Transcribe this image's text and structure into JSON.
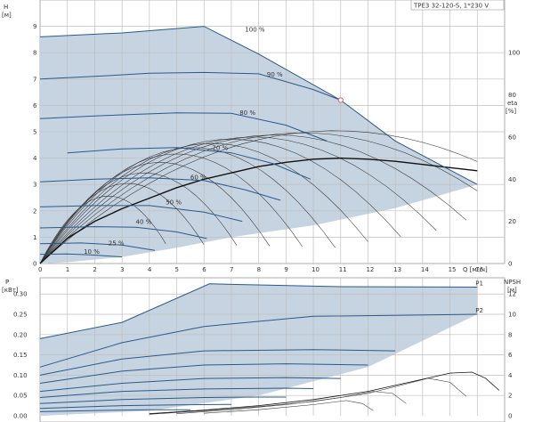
{
  "title": "TPE3 32-120-S, 1*230 V",
  "colors": {
    "band": "#c6d3e1",
    "curve": "#2b5a8a",
    "marker": "#e06060",
    "grid": "#bfbfbf"
  },
  "chart_data": [
    {
      "type": "line",
      "name": "head-efficiency",
      "xlim": [
        0,
        17
      ],
      "ylim": [
        0,
        10
      ],
      "x_ticks": [
        "0",
        "1",
        "2",
        "3",
        "4",
        "5",
        "6",
        "7",
        "8",
        "9",
        "10",
        "11",
        "12",
        "13",
        "14",
        "15",
        "16"
      ],
      "y_ticks": [
        "0",
        "1",
        "2",
        "3",
        "4",
        "5",
        "6",
        "7",
        "8",
        "9"
      ],
      "x_unit_label": "Q [м³/ч]",
      "y_title": "H",
      "y_unit": "[м]",
      "right_title": "eta",
      "right_unit": "[%]",
      "right_ticks": [
        "0",
        "20",
        "40",
        "60",
        "80",
        "100"
      ],
      "right_range": [
        0,
        125
      ],
      "curve_labels": [
        "100 %",
        "90 %",
        "80 %",
        "70 %",
        "60 %",
        "50 %",
        "40 %",
        "25 %",
        "10 %"
      ],
      "speed_curves": [
        {
          "label": "100 %",
          "points": [
            [
              0,
              8.6
            ],
            [
              3,
              8.75
            ],
            [
              6,
              9.0
            ],
            [
              8,
              7.95
            ],
            [
              11,
              6.2
            ],
            [
              13,
              4.65
            ],
            [
              15,
              3.55
            ],
            [
              16,
              3.0
            ]
          ]
        },
        {
          "label": "90 %",
          "points": [
            [
              0,
              7.0
            ],
            [
              2,
              7.1
            ],
            [
              4,
              7.22
            ],
            [
              6,
              7.25
            ],
            [
              8,
              7.2
            ],
            [
              10,
              6.6
            ],
            [
              11,
              6.2
            ]
          ]
        },
        {
          "label": "80 %",
          "points": [
            [
              0,
              5.5
            ],
            [
              2,
              5.6
            ],
            [
              5,
              5.72
            ],
            [
              7,
              5.7
            ],
            [
              9,
              5.25
            ],
            [
              10.5,
              4.65
            ]
          ]
        },
        {
          "label": "70 %",
          "points": [
            [
              1,
              4.2
            ],
            [
              3,
              4.35
            ],
            [
              5,
              4.4
            ],
            [
              7,
              4.2
            ],
            [
              8.5,
              3.8
            ],
            [
              9.9,
              3.2
            ]
          ]
        },
        {
          "label": "60 %",
          "points": [
            [
              0,
              3.1
            ],
            [
              2,
              3.2
            ],
            [
              4,
              3.25
            ],
            [
              6,
              3.15
            ],
            [
              7.5,
              2.8
            ],
            [
              8.8,
              2.4
            ]
          ]
        },
        {
          "label": "50 %",
          "points": [
            [
              0,
              2.15
            ],
            [
              2,
              2.2
            ],
            [
              4,
              2.2
            ],
            [
              6,
              1.95
            ],
            [
              7.4,
              1.6
            ]
          ]
        },
        {
          "label": "40 %",
          "points": [
            [
              0,
              1.35
            ],
            [
              2,
              1.4
            ],
            [
              3.5,
              1.38
            ],
            [
              5,
              1.2
            ],
            [
              6.1,
              0.95
            ]
          ]
        },
        {
          "label": "25 %",
          "points": [
            [
              0,
              0.75
            ],
            [
              1.5,
              0.78
            ],
            [
              3,
              0.7
            ],
            [
              4.2,
              0.5
            ]
          ]
        },
        {
          "label": "10 %",
          "points": [
            [
              0,
              0.35
            ],
            [
              1,
              0.36
            ],
            [
              2,
              0.32
            ],
            [
              3,
              0.25
            ]
          ]
        }
      ],
      "efficiency_curves": [
        {
          "peak_q": 2.5,
          "end_q": 4.6,
          "peak_eta": 32
        },
        {
          "peak_q": 3.2,
          "end_q": 6.0,
          "peak_eta": 38
        },
        {
          "peak_q": 3.8,
          "end_q": 7.2,
          "peak_eta": 43
        },
        {
          "peak_q": 4.4,
          "end_q": 8.4,
          "peak_eta": 48
        },
        {
          "peak_q": 5.0,
          "end_q": 9.6,
          "peak_eta": 52
        },
        {
          "peak_q": 5.6,
          "end_q": 10.8,
          "peak_eta": 55
        },
        {
          "peak_q": 6.3,
          "end_q": 12.0,
          "peak_eta": 57
        },
        {
          "peak_q": 7.0,
          "end_q": 13.2,
          "peak_eta": 59
        },
        {
          "peak_q": 7.8,
          "end_q": 14.5,
          "peak_eta": 60
        },
        {
          "peak_q": 8.6,
          "end_q": 15.6,
          "peak_eta": 61
        },
        {
          "peak_q": 9.6,
          "end_q": 16.0,
          "peak_eta": 62
        },
        {
          "peak_q": 10.8,
          "end_q": 16.0,
          "peak_eta": 63
        }
      ],
      "bold_eta_curve": [
        [
          0,
          0
        ],
        [
          1,
          12
        ],
        [
          2,
          20
        ],
        [
          3,
          26
        ],
        [
          4,
          31
        ],
        [
          5,
          36
        ],
        [
          6,
          40
        ],
        [
          7,
          43
        ],
        [
          8,
          46
        ],
        [
          9,
          48
        ],
        [
          10,
          49.5
        ],
        [
          11,
          50
        ],
        [
          12,
          49.5
        ],
        [
          13,
          48.5
        ],
        [
          14,
          47
        ],
        [
          15,
          45.5
        ],
        [
          16,
          44
        ]
      ],
      "duty_point": {
        "q": 11,
        "h": 6.2
      }
    },
    {
      "type": "line",
      "name": "power-npsh",
      "xlim": [
        0,
        17
      ],
      "ylim": [
        0,
        0.34
      ],
      "y_ticks": [
        "0.00",
        "0.05",
        "0.10",
        "0.15",
        "0.20",
        "0.25",
        "0.30"
      ],
      "y_title": "P",
      "y_unit": "[кВт]",
      "right_title": "NPSH",
      "right_unit": "[м]",
      "right_ticks": [
        "0",
        "2",
        "4",
        "6",
        "8",
        "10",
        "12"
      ],
      "right_range": [
        0,
        13.6
      ],
      "series_labels": [
        "P1",
        "P2"
      ],
      "power_curves": [
        {
          "label": "P1",
          "points": [
            [
              0,
              0.19
            ],
            [
              3,
              0.23
            ],
            [
              6.2,
              0.325
            ],
            [
              11,
              0.318
            ],
            [
              16,
              0.317
            ]
          ]
        },
        {
          "label": "P2",
          "points": [
            [
              0,
              0.12
            ],
            [
              3,
              0.18
            ],
            [
              6,
              0.22
            ],
            [
              10,
              0.245
            ],
            [
              16,
              0.25
            ]
          ]
        },
        {
          "points": [
            [
              0,
              0.1
            ],
            [
              3,
              0.14
            ],
            [
              6,
              0.16
            ],
            [
              10,
              0.163
            ],
            [
              13,
              0.16
            ]
          ]
        },
        {
          "points": [
            [
              0,
              0.08
            ],
            [
              3,
              0.11
            ],
            [
              6,
              0.125
            ],
            [
              9,
              0.128
            ],
            [
              12,
              0.125
            ]
          ]
        },
        {
          "points": [
            [
              0,
              0.06
            ],
            [
              3,
              0.08
            ],
            [
              6,
              0.092
            ],
            [
              9,
              0.094
            ],
            [
              11,
              0.092
            ]
          ]
        },
        {
          "points": [
            [
              0,
              0.045
            ],
            [
              3,
              0.06
            ],
            [
              6,
              0.066
            ],
            [
              9,
              0.068
            ],
            [
              10,
              0.067
            ]
          ]
        },
        {
          "points": [
            [
              0,
              0.03
            ],
            [
              3,
              0.04
            ],
            [
              6,
              0.045
            ],
            [
              8,
              0.046
            ],
            [
              9,
              0.046
            ]
          ]
        },
        {
          "points": [
            [
              0,
              0.018
            ],
            [
              3,
              0.025
            ],
            [
              5,
              0.027
            ],
            [
              7,
              0.028
            ]
          ]
        },
        {
          "points": [
            [
              0,
              0.01
            ],
            [
              2,
              0.013
            ],
            [
              4,
              0.015
            ],
            [
              5.5,
              0.015
            ]
          ]
        }
      ],
      "npsh_curves": [
        {
          "points": [
            [
              4,
              0.2
            ],
            [
              6,
              0.55
            ],
            [
              8,
              1.0
            ],
            [
              10,
              1.6
            ],
            [
              12,
              2.4
            ],
            [
              14,
              3.6
            ],
            [
              15,
              4.2
            ],
            [
              15.8,
              4.3
            ],
            [
              16.3,
              3.7
            ],
            [
              16.8,
              2.5
            ]
          ]
        },
        {
          "points": [
            [
              4,
              0.15
            ],
            [
              6,
              0.5
            ],
            [
              8,
              0.9
            ],
            [
              10,
              1.4
            ],
            [
              12,
              2.2
            ],
            [
              13.5,
              3.2
            ],
            [
              14.2,
              3.7
            ],
            [
              15,
              3.3
            ],
            [
              15.6,
              1.9
            ]
          ]
        },
        {
          "points": [
            [
              5,
              0.2
            ],
            [
              7,
              0.6
            ],
            [
              9,
              1.1
            ],
            [
              11,
              1.8
            ],
            [
              12.2,
              2.4
            ],
            [
              12.9,
              2.2
            ],
            [
              13.4,
              1.2
            ]
          ]
        },
        {
          "points": [
            [
              6,
              0.25
            ],
            [
              8,
              0.6
            ],
            [
              10,
              1.1
            ],
            [
              11.2,
              1.5
            ],
            [
              11.8,
              1.2
            ],
            [
              12.2,
              0.5
            ]
          ]
        }
      ]
    }
  ]
}
